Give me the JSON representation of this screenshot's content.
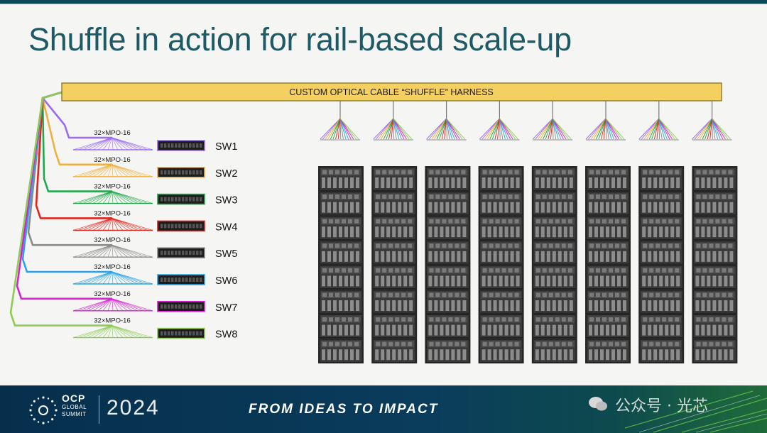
{
  "title": "Shuffle in action for rail-based scale-up",
  "harness_label": "CUSTOM OPTICAL CABLE “SHUFFLE”  HARNESS",
  "switches": [
    {
      "label": "SW1",
      "mpo": "32×MPO-16",
      "color": "#9b6bf2"
    },
    {
      "label": "SW2",
      "mpo": "32×MPO-16",
      "color": "#f0b040"
    },
    {
      "label": "SW3",
      "mpo": "32×MPO-16",
      "color": "#1fa84a"
    },
    {
      "label": "SW4",
      "mpo": "32×MPO-16",
      "color": "#e0241c"
    },
    {
      "label": "SW5",
      "mpo": "32×MPO-16",
      "color": "#8a8a8a"
    },
    {
      "label": "SW6",
      "mpo": "32×MPO-16",
      "color": "#2aa3e8"
    },
    {
      "label": "SW7",
      "mpo": "32×MPO-16",
      "color": "#d722d4"
    },
    {
      "label": "SW8",
      "mpo": "32×MPO-16",
      "color": "#8dcb52"
    }
  ],
  "rack_columns": 8,
  "servers_per_rack": 8,
  "fan_colors": [
    "#9b6bf2",
    "#f0b040",
    "#1fa84a",
    "#e0241c",
    "#8a8a8a",
    "#2aa3e8",
    "#d722d4",
    "#8dcb52"
  ],
  "colors": {
    "title": "#1e5a66",
    "harness_fill": "#f3d060",
    "harness_border": "#7a6a20"
  },
  "footer": {
    "logo_text": "OCP",
    "logo_sub1": "GLOBAL",
    "logo_sub2": "SUMMIT",
    "year": "2024",
    "tagline": "FROM IDEAS TO IMPACT",
    "watermark": "公众号 · 光芯"
  }
}
